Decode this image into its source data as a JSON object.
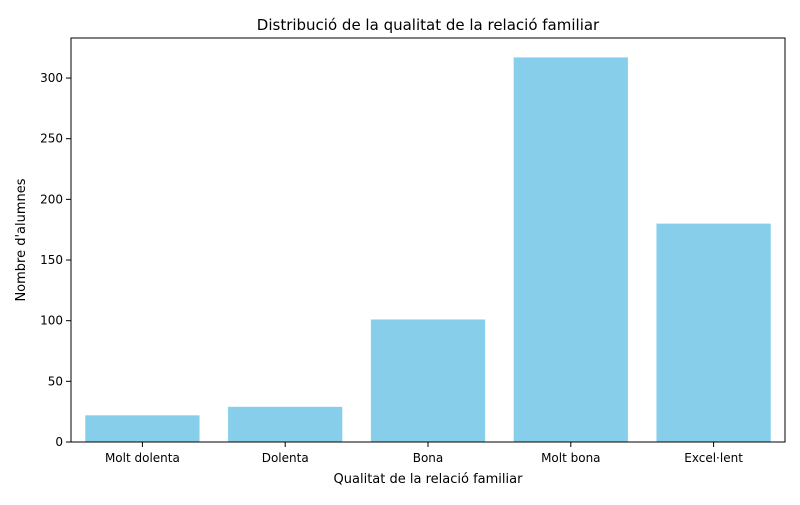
{
  "chart_data": {
    "type": "bar",
    "title": "Distribució de la qualitat de la relació familiar",
    "xlabel": "Qualitat de la relació familiar",
    "ylabel": "Nombre d'alumnes",
    "categories": [
      "Molt dolenta",
      "Dolenta",
      "Bona",
      "Molt bona",
      "Excel·lent"
    ],
    "values": [
      22,
      29,
      101,
      317,
      180
    ],
    "ylim": [
      0,
      333
    ],
    "yticks": [
      0,
      50,
      100,
      150,
      200,
      250,
      300
    ],
    "bar_color": "#87ceeb",
    "grid": false,
    "legend": "none"
  }
}
